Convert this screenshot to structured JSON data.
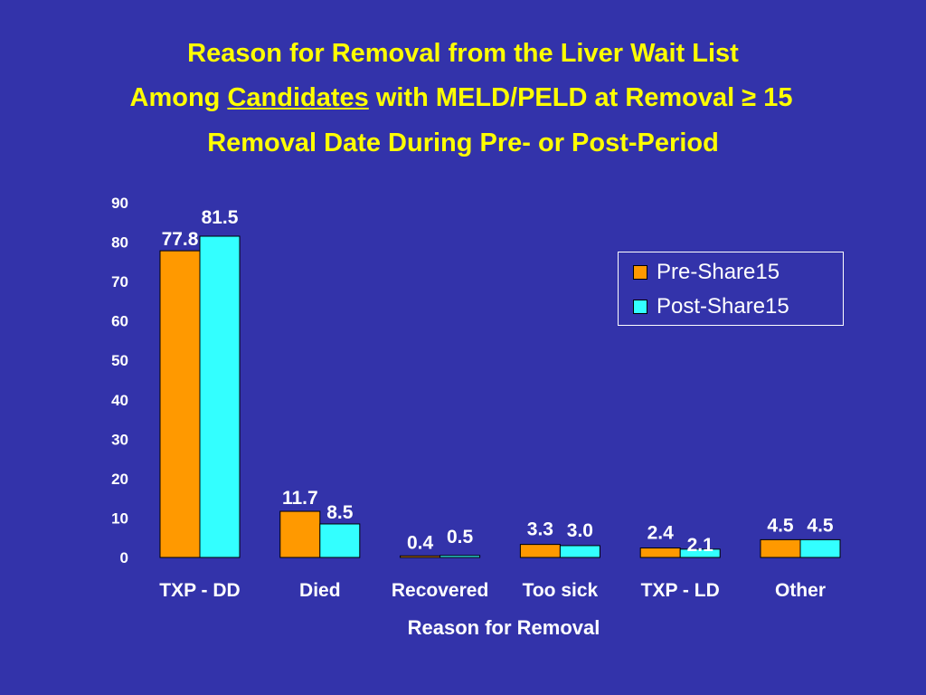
{
  "title": {
    "line1": "Reason for Removal from the Liver Wait List",
    "line2_pre": "Among ",
    "line2_underlined": "Candidates",
    "line2_post": " with MELD/PELD at Removal ≥ 15",
    "line3": "Removal Date During Pre- or Post-Period"
  },
  "colors": {
    "background": "#3333aa",
    "title": "#ffff00",
    "series_pre": "#ff9900",
    "series_post": "#33ffff",
    "text": "#ffffff"
  },
  "chart_data": {
    "type": "bar",
    "categories": [
      "TXP - DD",
      "Died",
      "Recovered",
      "Too sick",
      "TXP - LD",
      "Other"
    ],
    "series": [
      {
        "name": "Pre-Share15",
        "values": [
          77.8,
          11.7,
          0.4,
          3.3,
          2.4,
          4.5
        ],
        "labels": [
          "77.8",
          "11.7",
          "0.4",
          "3.3",
          "2.4",
          "4.5"
        ]
      },
      {
        "name": "Post-Share15",
        "values": [
          81.5,
          8.5,
          0.5,
          3.0,
          2.1,
          4.5
        ],
        "labels": [
          "81.5",
          "8.5",
          "0.5",
          "3.0",
          "2.1",
          "4.5"
        ]
      }
    ],
    "xlabel": "Reason for Removal",
    "ylabel": "",
    "ylim": [
      0,
      90
    ],
    "yticks": [
      "0",
      "10",
      "20",
      "30",
      "40",
      "50",
      "60",
      "70",
      "80",
      "90"
    ],
    "legend_position": "right",
    "grid": false
  }
}
